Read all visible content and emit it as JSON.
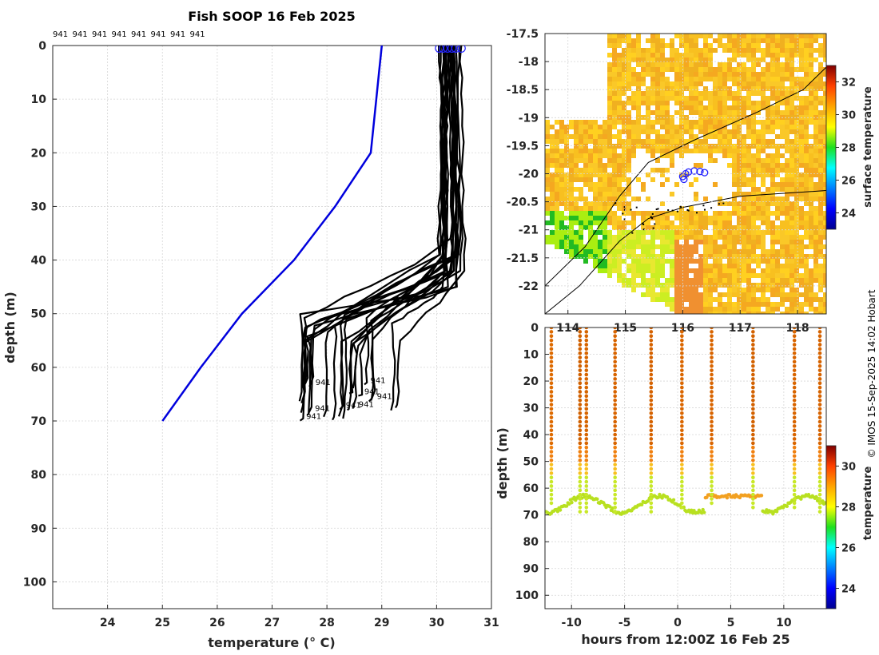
{
  "chart_data": [
    {
      "type": "line",
      "title": "Fish SOOP 16 Feb 2025",
      "xlabel": "temperature (° C)",
      "ylabel": "depth (m)",
      "xlim": [
        23,
        31
      ],
      "ylim": [
        105,
        0
      ],
      "xticks": [
        "24",
        "25",
        "26",
        "27",
        "28",
        "29",
        "30",
        "31"
      ],
      "yticks": [
        "0",
        "10",
        "20",
        "30",
        "40",
        "50",
        "60",
        "70",
        "80",
        "90",
        "100"
      ],
      "top_labels": [
        "941",
        "941",
        "941",
        "941",
        "941",
        "941",
        "941",
        "941"
      ],
      "profile_id": "941",
      "grid": true,
      "series": [
        {
          "name": "climatology",
          "color": "#0000dd",
          "points": [
            [
              29.0,
              0
            ],
            [
              28.95,
              5
            ],
            [
              28.9,
              10
            ],
            [
              28.8,
              20
            ],
            [
              28.15,
              30
            ],
            [
              27.4,
              40
            ],
            [
              26.45,
              50
            ],
            [
              25.7,
              60
            ],
            [
              25.0,
              70
            ]
          ]
        }
      ],
      "profile_ensemble": {
        "color": "#000000",
        "count": 24,
        "surface_temp_range": [
          30.05,
          30.45
        ],
        "thermocline_top_depth": [
          38,
          47
        ],
        "thermocline_bottom_depth": [
          50,
          56
        ],
        "bottom_temp_range": [
          27.55,
          29.35
        ],
        "max_depth_range": [
          63,
          70
        ]
      },
      "surface_markers": {
        "color": "#2222ff",
        "temps": [
          30.05,
          30.12,
          30.2,
          30.28,
          30.35,
          30.45
        ]
      }
    },
    {
      "type": "heatmap",
      "subtype": "map",
      "title": "",
      "xlabel": "",
      "ylabel": "",
      "xlim": [
        113.6,
        118.5
      ],
      "ylim": [
        -22.5,
        -17.5
      ],
      "xticks": [
        "114",
        "115",
        "116",
        "117",
        "118"
      ],
      "yticks": [
        "-17.5",
        "-18",
        "-18.5",
        "-19",
        "-19.5",
        "-20",
        "-20.5",
        "-21",
        "-21.5",
        "-22"
      ],
      "colorbar": {
        "label": "surface temperature",
        "range": [
          23,
          33
        ],
        "ticks": [
          "24",
          "26",
          "28",
          "30",
          "32"
        ]
      },
      "track_color": "#2222ff"
    },
    {
      "type": "scatter",
      "title": "",
      "xlabel": "hours from 12:00Z 16 Feb 25",
      "ylabel": "depth (m)",
      "xlim": [
        -12.5,
        14
      ],
      "ylim": [
        105,
        0
      ],
      "xticks": [
        "-10",
        "-5",
        "0",
        "5",
        "10"
      ],
      "yticks": [
        "0",
        "10",
        "20",
        "30",
        "40",
        "50",
        "60",
        "70",
        "80",
        "90",
        "100"
      ],
      "colorbar": {
        "label": "temperature",
        "range": [
          23,
          31
        ],
        "ticks": [
          "24",
          "26",
          "28",
          "30"
        ]
      },
      "casts_hours": [
        -11.9,
        -9.2,
        -8.6,
        -5.9,
        -2.5,
        0.4,
        3.2,
        7.1,
        11.0,
        13.4
      ],
      "cast_colors": [
        "#dd6a00",
        "#d06000",
        "#d76500",
        "#d86400",
        "#d56200",
        "#da6600",
        "#d86400",
        "#d26100",
        "#d96500",
        "#d66300"
      ],
      "cast_bottom_depths": [
        67,
        69,
        70,
        69,
        70,
        68,
        66,
        68,
        68,
        70
      ]
    }
  ],
  "credit": "© IMOS 15-Sep-2025 14:02 Hobart"
}
